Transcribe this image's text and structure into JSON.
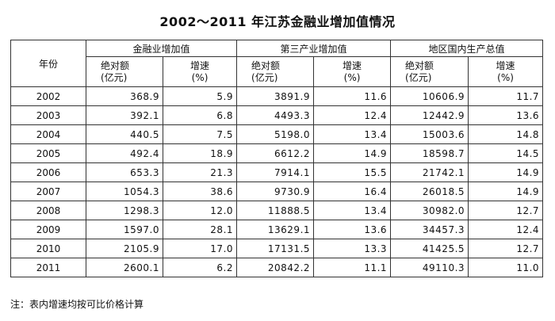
{
  "title": "2002～2011 年江苏金融业增加值情况",
  "headers": {
    "year": "年份",
    "groups": [
      "金融业增加值",
      "第三产业增加值",
      "地区国内生产总值"
    ],
    "abs_label_line1": "绝对额",
    "abs_label_line2": "(亿元)",
    "rate_label_line1": "增速",
    "rate_label_line2": "(%)"
  },
  "rows": [
    {
      "year": "2002",
      "fin_abs": "368.9",
      "fin_rate": "5.9",
      "ter_abs": "3891.9",
      "ter_rate": "11.6",
      "gdp_abs": "10606.9",
      "gdp_rate": "11.7"
    },
    {
      "year": "2003",
      "fin_abs": "392.1",
      "fin_rate": "6.8",
      "ter_abs": "4493.3",
      "ter_rate": "12.4",
      "gdp_abs": "12442.9",
      "gdp_rate": "13.6"
    },
    {
      "year": "2004",
      "fin_abs": "440.5",
      "fin_rate": "7.5",
      "ter_abs": "5198.0",
      "ter_rate": "13.4",
      "gdp_abs": "15003.6",
      "gdp_rate": "14.8"
    },
    {
      "year": "2005",
      "fin_abs": "492.4",
      "fin_rate": "18.9",
      "ter_abs": "6612.2",
      "ter_rate": "14.9",
      "gdp_abs": "18598.7",
      "gdp_rate": "14.5"
    },
    {
      "year": "2006",
      "fin_abs": "653.3",
      "fin_rate": "21.3",
      "ter_abs": "7914.1",
      "ter_rate": "15.5",
      "gdp_abs": "21742.1",
      "gdp_rate": "14.9"
    },
    {
      "year": "2007",
      "fin_abs": "1054.3",
      "fin_rate": "38.6",
      "ter_abs": "9730.9",
      "ter_rate": "16.4",
      "gdp_abs": "26018.5",
      "gdp_rate": "14.9"
    },
    {
      "year": "2008",
      "fin_abs": "1298.3",
      "fin_rate": "12.0",
      "ter_abs": "11888.5",
      "ter_rate": "13.4",
      "gdp_abs": "30982.0",
      "gdp_rate": "12.7"
    },
    {
      "year": "2009",
      "fin_abs": "1597.0",
      "fin_rate": "28.1",
      "ter_abs": "13629.1",
      "ter_rate": "13.6",
      "gdp_abs": "34457.3",
      "gdp_rate": "12.4"
    },
    {
      "year": "2010",
      "fin_abs": "2105.9",
      "fin_rate": "17.0",
      "ter_abs": "17131.5",
      "ter_rate": "13.3",
      "gdp_abs": "41425.5",
      "gdp_rate": "12.7"
    },
    {
      "year": "2011",
      "fin_abs": "2600.1",
      "fin_rate": "6.2",
      "ter_abs": "20842.2",
      "ter_rate": "11.1",
      "gdp_abs": "49110.3",
      "gdp_rate": "11.0"
    }
  ],
  "note": "注：表内增速均按可比价格计算"
}
